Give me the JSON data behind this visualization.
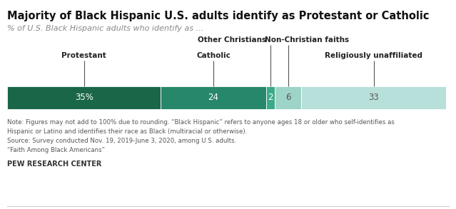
{
  "title": "Majority of Black Hispanic U.S. adults identify as Protestant or Catholic",
  "subtitle": "% of U.S. Black Hispanic adults who identify as ...",
  "segments": [
    {
      "label": "Protestant",
      "value": 35,
      "display": "35%",
      "color": "#1a6648",
      "text_color": "#ffffff"
    },
    {
      "label": "Catholic",
      "value": 24,
      "display": "24",
      "color": "#27876a",
      "text_color": "#ffffff"
    },
    {
      "label": "Other Christians",
      "value": 2,
      "display": "2",
      "color": "#3caa88",
      "text_color": "#ffffff"
    },
    {
      "label": "Non-Christian faiths",
      "value": 6,
      "display": "6",
      "color": "#9ed3c8",
      "text_color": "#555555"
    },
    {
      "label": "Religiously unaffiliated",
      "value": 33,
      "display": "33",
      "color": "#b8e0da",
      "text_color": "#555555"
    }
  ],
  "note_lines": [
    "Note: Figures may not add to 100% due to rounding. “Black Hispanic” refers to anyone ages 18 or older who self-identifies as",
    "Hispanic or Latino and identifies their race as Black (multiracial or otherwise).",
    "Source: Survey conducted Nov. 19, 2019-June 3, 2020, among U.S. adults.",
    "“Faith Among Black Americans”"
  ],
  "source_label": "PEW RESEARCH CENTER",
  "bg_color": "#ffffff",
  "label_row1": [
    "",
    "",
    "Other Christians",
    "Non-Christian faiths",
    ""
  ],
  "label_row2": [
    "Protestant",
    "Catholic",
    "",
    "",
    "Religiously unaffiliated"
  ]
}
